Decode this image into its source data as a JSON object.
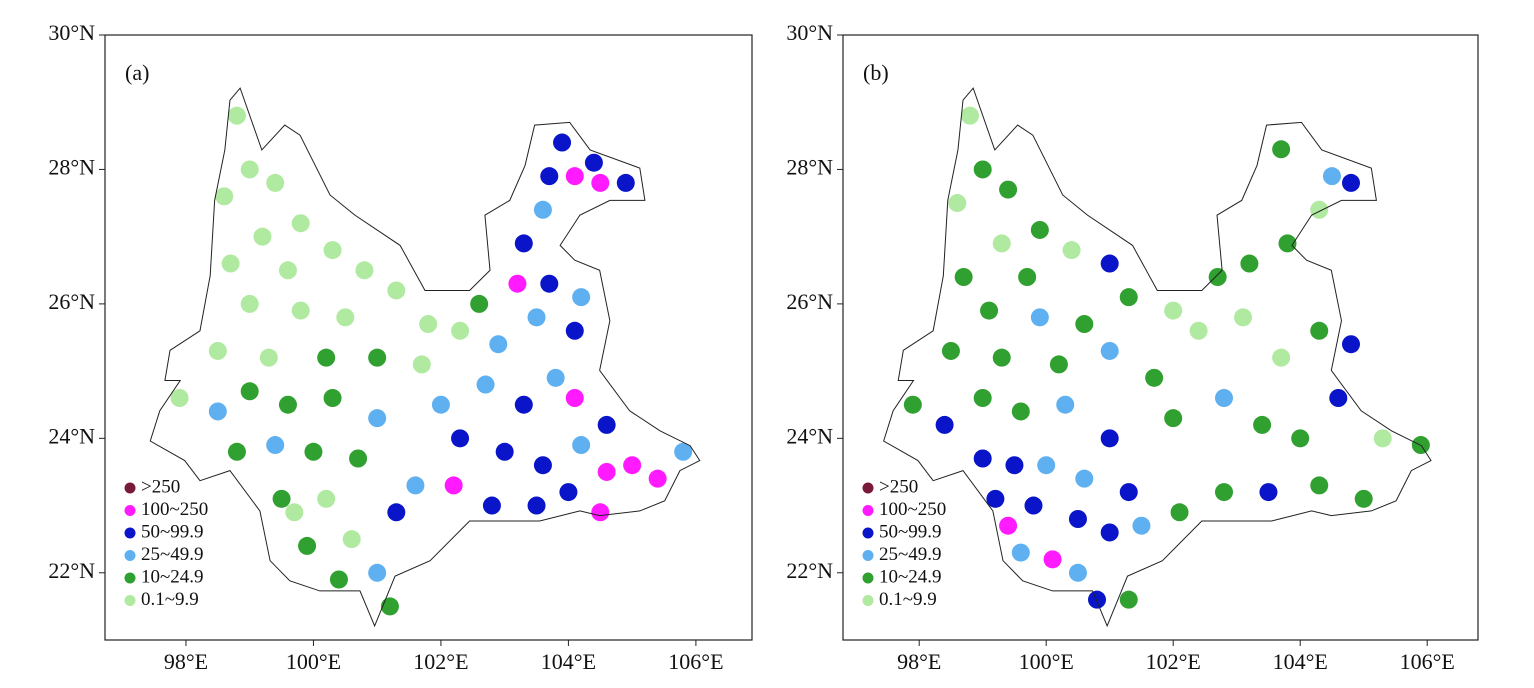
{
  "panels": [
    {
      "label": "(a)",
      "xlim": [
        96.73,
        106.88
      ],
      "ylim": [
        21,
        30
      ],
      "xticks": [
        {
          "value": 98,
          "label": "98°E"
        },
        {
          "value": 100,
          "label": "100°E"
        },
        {
          "value": 102,
          "label": "102°E"
        },
        {
          "value": 104,
          "label": "104°E"
        },
        {
          "value": 106,
          "label": "106°E"
        }
      ],
      "yticks": [
        {
          "value": 22,
          "label": "22°N"
        },
        {
          "value": 24,
          "label": "24°N"
        },
        {
          "value": 26,
          "label": "26°N"
        },
        {
          "value": 28,
          "label": "28°N"
        },
        {
          "value": 30,
          "label": "30°N"
        }
      ],
      "legend": [
        {
          "label": ">250",
          "color": "#7a1a3a"
        },
        {
          "label": "100~250",
          "color": "#ff1aff"
        },
        {
          "label": "50~99.9",
          "color": "#0a14c8"
        },
        {
          "label": "25~49.9",
          "color": "#5fb0f0"
        },
        {
          "label": "10~24.9",
          "color": "#30a030"
        },
        {
          "label": "0.1~9.9",
          "color": "#b0eaa0"
        }
      ],
      "points": [
        [
          98.8,
          28.8,
          5
        ],
        [
          99.0,
          28.0,
          5
        ],
        [
          98.6,
          27.6,
          5
        ],
        [
          99.4,
          27.8,
          5
        ],
        [
          99.8,
          27.2,
          5
        ],
        [
          99.2,
          27.0,
          5
        ],
        [
          98.7,
          26.6,
          5
        ],
        [
          99.6,
          26.5,
          5
        ],
        [
          100.3,
          26.8,
          5
        ],
        [
          100.8,
          26.5,
          5
        ],
        [
          99.0,
          26.0,
          5
        ],
        [
          99.8,
          25.9,
          5
        ],
        [
          100.5,
          25.8,
          5
        ],
        [
          101.3,
          26.2,
          5
        ],
        [
          101.8,
          25.7,
          5
        ],
        [
          98.5,
          25.3,
          5
        ],
        [
          99.3,
          25.2,
          5
        ],
        [
          100.2,
          25.2,
          4
        ],
        [
          101.0,
          25.2,
          4
        ],
        [
          101.7,
          25.1,
          5
        ],
        [
          102.3,
          25.6,
          5
        ],
        [
          97.9,
          24.6,
          5
        ],
        [
          98.5,
          24.4,
          3
        ],
        [
          99.0,
          24.7,
          4
        ],
        [
          99.6,
          24.5,
          4
        ],
        [
          100.3,
          24.6,
          4
        ],
        [
          101.0,
          24.3,
          3
        ],
        [
          98.8,
          23.8,
          4
        ],
        [
          99.4,
          23.9,
          3
        ],
        [
          100.0,
          23.8,
          4
        ],
        [
          100.7,
          23.7,
          4
        ],
        [
          99.5,
          23.1,
          4
        ],
        [
          100.2,
          23.1,
          5
        ],
        [
          100.6,
          22.5,
          5
        ],
        [
          99.9,
          22.4,
          4
        ],
        [
          100.4,
          21.9,
          4
        ],
        [
          101.0,
          22.0,
          3
        ],
        [
          101.2,
          21.5,
          4
        ],
        [
          99.7,
          22.9,
          5
        ],
        [
          101.3,
          22.9,
          2
        ],
        [
          101.6,
          23.3,
          3
        ],
        [
          102.0,
          24.5,
          3
        ],
        [
          102.7,
          24.8,
          3
        ],
        [
          103.3,
          24.5,
          2
        ],
        [
          103.8,
          24.9,
          3
        ],
        [
          102.3,
          24.0,
          2
        ],
        [
          103.0,
          23.8,
          2
        ],
        [
          103.6,
          23.6,
          2
        ],
        [
          104.2,
          23.9,
          3
        ],
        [
          102.2,
          23.3,
          1
        ],
        [
          102.8,
          23.0,
          2
        ],
        [
          103.5,
          23.0,
          2
        ],
        [
          104.0,
          23.2,
          2
        ],
        [
          104.6,
          23.5,
          1
        ],
        [
          105.0,
          23.6,
          1
        ],
        [
          105.4,
          23.4,
          1
        ],
        [
          105.8,
          23.8,
          3
        ],
        [
          104.5,
          22.9,
          1
        ],
        [
          104.1,
          24.6,
          1
        ],
        [
          104.6,
          24.2,
          2
        ],
        [
          102.9,
          25.4,
          3
        ],
        [
          103.5,
          25.8,
          3
        ],
        [
          104.1,
          25.6,
          2
        ],
        [
          102.6,
          26.0,
          4
        ],
        [
          103.2,
          26.3,
          1
        ],
        [
          103.7,
          26.3,
          2
        ],
        [
          104.2,
          26.1,
          3
        ],
        [
          103.3,
          26.9,
          2
        ],
        [
          103.6,
          27.4,
          3
        ],
        [
          103.9,
          28.4,
          2
        ],
        [
          104.1,
          27.9,
          1
        ],
        [
          104.5,
          27.8,
          1
        ],
        [
          104.9,
          27.8,
          2
        ],
        [
          104.4,
          28.1,
          2
        ],
        [
          103.7,
          27.9,
          2
        ]
      ]
    },
    {
      "label": "(b)",
      "xlim": [
        96.8,
        106.8
      ],
      "ylim": [
        21,
        30
      ],
      "xticks": [
        {
          "value": 98,
          "label": "98°E"
        },
        {
          "value": 100,
          "label": "100°E"
        },
        {
          "value": 102,
          "label": "102°E"
        },
        {
          "value": 104,
          "label": "104°E"
        },
        {
          "value": 106,
          "label": "106°E"
        }
      ],
      "yticks": [
        {
          "value": 22,
          "label": "22°N"
        },
        {
          "value": 24,
          "label": "24°N"
        },
        {
          "value": 26,
          "label": "26°N"
        },
        {
          "value": 28,
          "label": "28°N"
        },
        {
          "value": 30,
          "label": "30°N"
        }
      ],
      "legend": [
        {
          "label": ">250",
          "color": "#7a1a3a"
        },
        {
          "label": "100~250",
          "color": "#ff1aff"
        },
        {
          "label": "50~99.9",
          "color": "#0a14c8"
        },
        {
          "label": "25~49.9",
          "color": "#5fb0f0"
        },
        {
          "label": "10~24.9",
          "color": "#30a030"
        },
        {
          "label": "0.1~9.9",
          "color": "#b0eaa0"
        }
      ],
      "points": [
        [
          98.8,
          28.8,
          5
        ],
        [
          99.0,
          28.0,
          4
        ],
        [
          98.6,
          27.5,
          5
        ],
        [
          99.4,
          27.7,
          4
        ],
        [
          99.9,
          27.1,
          4
        ],
        [
          99.3,
          26.9,
          5
        ],
        [
          98.7,
          26.4,
          4
        ],
        [
          99.7,
          26.4,
          4
        ],
        [
          100.4,
          26.8,
          5
        ],
        [
          101.0,
          26.6,
          2
        ],
        [
          99.1,
          25.9,
          4
        ],
        [
          99.9,
          25.8,
          3
        ],
        [
          100.6,
          25.7,
          4
        ],
        [
          101.3,
          26.1,
          4
        ],
        [
          102.0,
          25.9,
          5
        ],
        [
          98.5,
          25.3,
          4
        ],
        [
          99.3,
          25.2,
          4
        ],
        [
          100.2,
          25.1,
          4
        ],
        [
          101.0,
          25.3,
          3
        ],
        [
          101.7,
          24.9,
          4
        ],
        [
          102.4,
          25.6,
          5
        ],
        [
          103.1,
          25.8,
          5
        ],
        [
          103.7,
          25.2,
          5
        ],
        [
          104.3,
          25.6,
          4
        ],
        [
          104.8,
          25.4,
          2
        ],
        [
          103.2,
          26.6,
          4
        ],
        [
          103.8,
          26.9,
          4
        ],
        [
          104.3,
          27.4,
          5
        ],
        [
          103.7,
          28.3,
          4
        ],
        [
          104.5,
          27.9,
          3
        ],
        [
          104.8,
          27.8,
          2
        ],
        [
          102.7,
          26.4,
          4
        ],
        [
          97.9,
          24.5,
          4
        ],
        [
          98.4,
          24.2,
          2
        ],
        [
          99.0,
          24.6,
          4
        ],
        [
          99.6,
          24.4,
          4
        ],
        [
          100.3,
          24.5,
          3
        ],
        [
          101.0,
          24.0,
          2
        ],
        [
          102.0,
          24.3,
          4
        ],
        [
          102.8,
          24.6,
          3
        ],
        [
          103.4,
          24.2,
          4
        ],
        [
          104.0,
          24.0,
          4
        ],
        [
          104.6,
          24.6,
          2
        ],
        [
          105.3,
          24.0,
          5
        ],
        [
          105.9,
          23.9,
          4
        ],
        [
          99.0,
          23.7,
          2
        ],
        [
          99.5,
          23.6,
          2
        ],
        [
          100.0,
          23.6,
          3
        ],
        [
          100.6,
          23.4,
          3
        ],
        [
          101.3,
          23.2,
          2
        ],
        [
          99.2,
          23.1,
          2
        ],
        [
          99.8,
          23.0,
          2
        ],
        [
          100.5,
          22.8,
          2
        ],
        [
          101.0,
          22.6,
          2
        ],
        [
          101.5,
          22.7,
          3
        ],
        [
          102.1,
          22.9,
          4
        ],
        [
          102.8,
          23.2,
          4
        ],
        [
          103.5,
          23.2,
          2
        ],
        [
          104.3,
          23.3,
          4
        ],
        [
          105.0,
          23.1,
          4
        ],
        [
          99.4,
          22.7,
          1
        ],
        [
          100.1,
          22.2,
          1
        ],
        [
          100.5,
          22.0,
          3
        ],
        [
          100.8,
          21.6,
          2
        ],
        [
          101.3,
          21.6,
          4
        ],
        [
          99.6,
          22.3,
          3
        ]
      ]
    }
  ],
  "boundary": [
    [
      98.85,
      29.21
    ],
    [
      99.19,
      28.29
    ],
    [
      99.55,
      28.66
    ],
    [
      99.79,
      28.51
    ],
    [
      100.26,
      27.62
    ],
    [
      100.65,
      27.32
    ],
    [
      101.36,
      26.87
    ],
    [
      101.75,
      26.2
    ],
    [
      102.45,
      26.2
    ],
    [
      102.77,
      26.5
    ],
    [
      102.69,
      27.32
    ],
    [
      103.08,
      27.54
    ],
    [
      103.32,
      28.06
    ],
    [
      103.47,
      28.66
    ],
    [
      104.02,
      28.7
    ],
    [
      104.34,
      28.29
    ],
    [
      105.12,
      28.02
    ],
    [
      105.2,
      27.54
    ],
    [
      104.65,
      27.54
    ],
    [
      104.18,
      27.32
    ],
    [
      103.87,
      26.87
    ],
    [
      104.1,
      26.65
    ],
    [
      104.49,
      26.5
    ],
    [
      104.65,
      25.75
    ],
    [
      104.49,
      25.01
    ],
    [
      104.96,
      24.41
    ],
    [
      105.44,
      24.11
    ],
    [
      105.91,
      23.89
    ],
    [
      106.06,
      23.67
    ],
    [
      105.75,
      23.52
    ],
    [
      105.51,
      23.07
    ],
    [
      105.12,
      22.92
    ],
    [
      104.49,
      22.85
    ],
    [
      104.18,
      22.92
    ],
    [
      103.55,
      22.77
    ],
    [
      102.45,
      22.77
    ],
    [
      101.83,
      22.18
    ],
    [
      101.28,
      21.95
    ],
    [
      101.12,
      21.58
    ],
    [
      100.96,
      21.21
    ],
    [
      100.73,
      21.73
    ],
    [
      100.1,
      21.73
    ],
    [
      99.63,
      21.88
    ],
    [
      99.32,
      22.18
    ],
    [
      99.16,
      22.92
    ],
    [
      98.69,
      23.52
    ],
    [
      98.22,
      23.37
    ],
    [
      97.98,
      23.67
    ],
    [
      97.44,
      23.96
    ],
    [
      97.59,
      24.41
    ],
    [
      97.91,
      24.86
    ],
    [
      97.67,
      24.86
    ],
    [
      97.75,
      25.31
    ],
    [
      98.22,
      25.6
    ],
    [
      98.38,
      26.42
    ],
    [
      98.45,
      27.54
    ],
    [
      98.61,
      28.29
    ],
    [
      98.69,
      29.03
    ]
  ]
}
